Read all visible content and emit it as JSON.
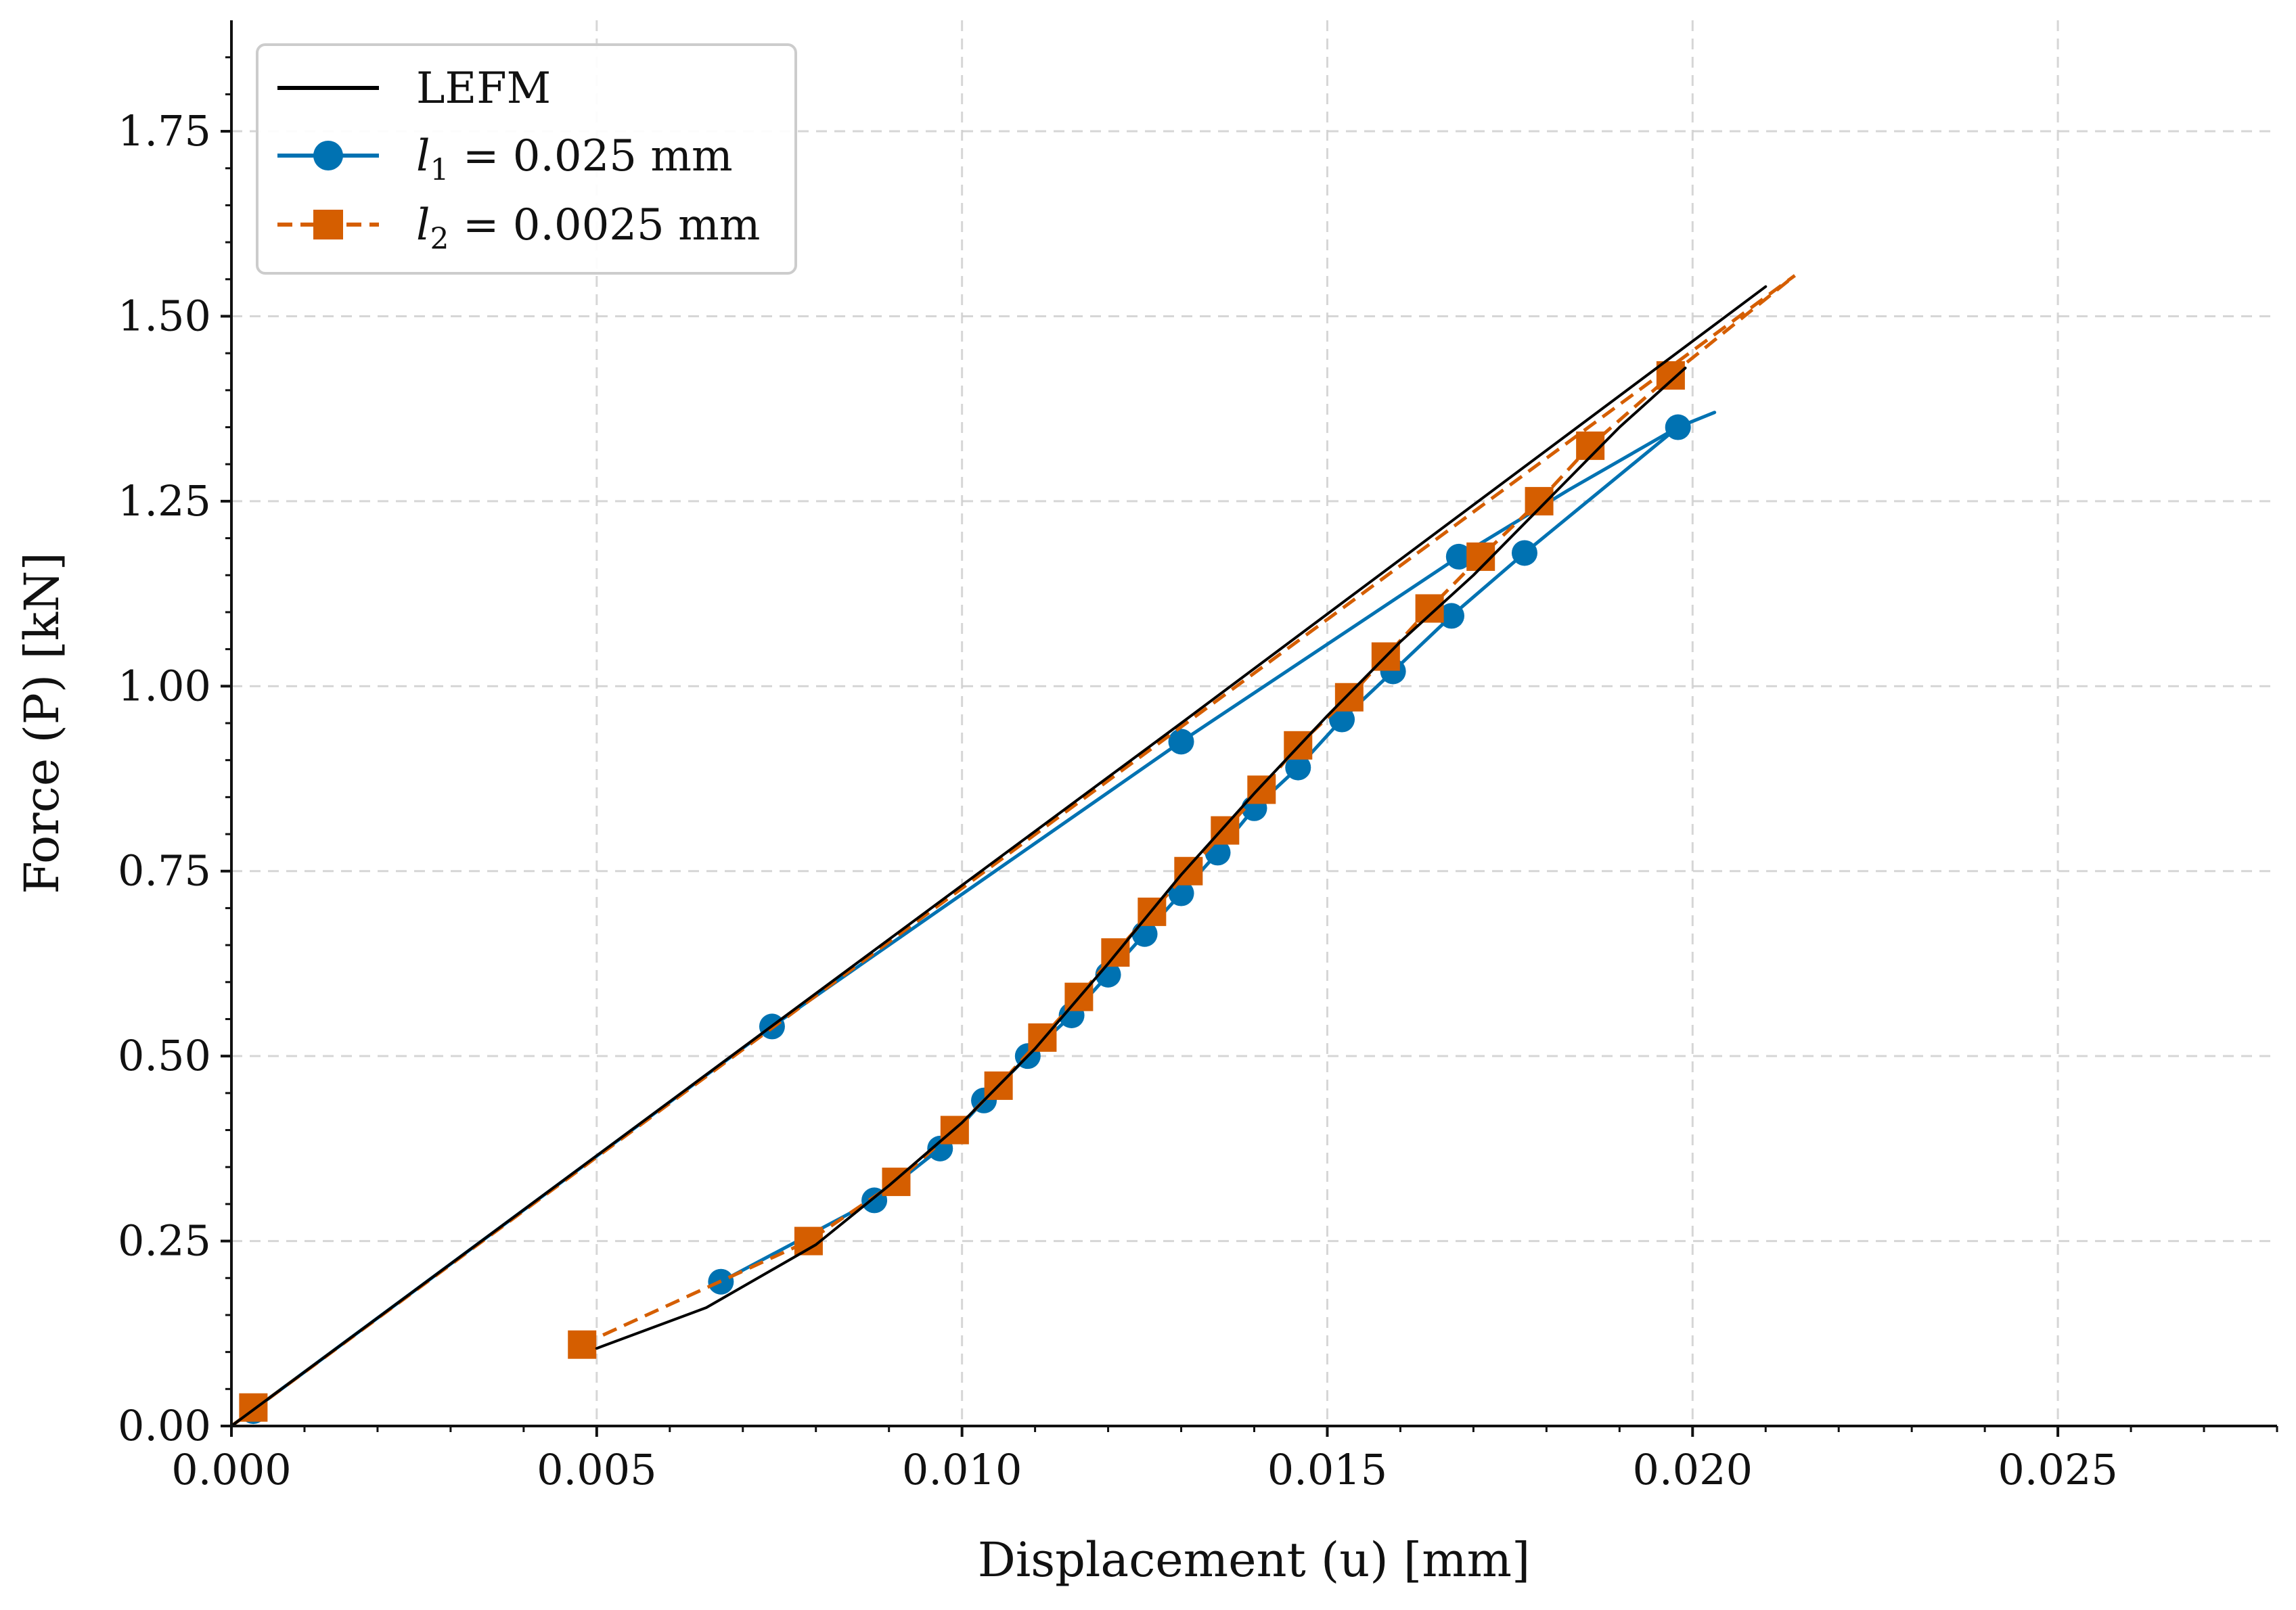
{
  "chart_data": {
    "type": "line",
    "xlabel": "Displacement (u) [mm]",
    "ylabel": "Force (P) [kN]",
    "xlim": [
      0,
      0.028
    ],
    "ylim": [
      0,
      1.9
    ],
    "x_ticks": [
      "0.000",
      "0.005",
      "0.010",
      "0.015",
      "0.020",
      "0.025"
    ],
    "y_ticks": [
      "0.00",
      "0.25",
      "0.50",
      "0.75",
      "1.00",
      "1.25",
      "1.50",
      "1.75"
    ],
    "grid": true,
    "legend_position": "top-left",
    "series": [
      {
        "name": "LEFM",
        "color": "#000000",
        "line_style": "solid",
        "marker": "none",
        "segments": [
          [
            [
              0.0,
              0.0
            ],
            [
              0.013,
              0.95
            ],
            [
              0.021,
              1.54
            ]
          ],
          [
            [
              0.005,
              0.105
            ],
            [
              0.0065,
              0.16
            ],
            [
              0.008,
              0.245
            ],
            [
              0.009,
              0.325
            ],
            [
              0.01,
              0.41
            ],
            [
              0.011,
              0.51
            ],
            [
              0.012,
              0.625
            ],
            [
              0.013,
              0.745
            ],
            [
              0.014,
              0.855
            ],
            [
              0.015,
              0.96
            ],
            [
              0.016,
              1.06
            ],
            [
              0.017,
              1.15
            ],
            [
              0.018,
              1.25
            ],
            [
              0.019,
              1.35
            ],
            [
              0.0199,
              1.43
            ]
          ]
        ]
      },
      {
        "name": "l_1 = 0.025 mm",
        "legend_main": "l",
        "legend_sub": "1",
        "legend_rest": " = 0.025 mm",
        "color": "#0072b2",
        "line_style": "solid",
        "marker": "circle",
        "segments": [
          [
            [
              0.0,
              0.0
            ],
            [
              0.0074,
              0.54
            ],
            [
              0.013,
              0.925
            ],
            [
              0.0168,
              1.175
            ],
            [
              0.0183,
              1.265
            ],
            [
              0.0198,
              1.35
            ],
            [
              0.0203,
              1.37
            ]
          ],
          [
            [
              0.0067,
              0.195
            ],
            [
              0.0088,
              0.305
            ],
            [
              0.0097,
              0.375
            ],
            [
              0.0103,
              0.44
            ],
            [
              0.0109,
              0.5
            ],
            [
              0.0115,
              0.555
            ],
            [
              0.012,
              0.61
            ],
            [
              0.0125,
              0.665
            ],
            [
              0.013,
              0.72
            ],
            [
              0.0135,
              0.775
            ],
            [
              0.014,
              0.835
            ],
            [
              0.0146,
              0.89
            ],
            [
              0.0152,
              0.955
            ],
            [
              0.0159,
              1.02
            ],
            [
              0.0167,
              1.095
            ],
            [
              0.0177,
              1.18
            ],
            [
              0.0198,
              1.35
            ]
          ]
        ],
        "markers": [
          [
            0.0003,
            0.02
          ],
          [
            0.0074,
            0.54
          ],
          [
            0.013,
            0.925
          ],
          [
            0.0168,
            1.175
          ],
          [
            0.0198,
            1.35
          ],
          [
            0.0067,
            0.195
          ],
          [
            0.0088,
            0.305
          ],
          [
            0.0097,
            0.375
          ],
          [
            0.0103,
            0.44
          ],
          [
            0.0109,
            0.5
          ],
          [
            0.0115,
            0.555
          ],
          [
            0.012,
            0.61
          ],
          [
            0.0125,
            0.665
          ],
          [
            0.013,
            0.72
          ],
          [
            0.0135,
            0.775
          ],
          [
            0.014,
            0.835
          ],
          [
            0.0146,
            0.89
          ],
          [
            0.0152,
            0.955
          ],
          [
            0.0159,
            1.02
          ],
          [
            0.0167,
            1.095
          ],
          [
            0.0177,
            1.18
          ]
        ]
      },
      {
        "name": "l_2 = 0.0025 mm",
        "legend_main": "l",
        "legend_sub": "2",
        "legend_rest": " = 0.0025 mm",
        "color": "#d55e00",
        "line_style": "dashed",
        "marker": "square",
        "segments": [
          [
            [
              0.0,
              0.0
            ],
            [
              0.013,
              0.945
            ],
            [
              0.0214,
              1.555
            ]
          ],
          [
            [
              0.0048,
              0.11
            ],
            [
              0.0079,
              0.25
            ],
            [
              0.0091,
              0.33
            ],
            [
              0.0099,
              0.4
            ],
            [
              0.0105,
              0.46
            ],
            [
              0.0111,
              0.525
            ],
            [
              0.0116,
              0.58
            ],
            [
              0.0121,
              0.64
            ],
            [
              0.0126,
              0.695
            ],
            [
              0.0131,
              0.75
            ],
            [
              0.0136,
              0.805
            ],
            [
              0.0141,
              0.86
            ],
            [
              0.0146,
              0.92
            ],
            [
              0.0153,
              0.985
            ],
            [
              0.0158,
              1.04
            ],
            [
              0.0164,
              1.105
            ],
            [
              0.0171,
              1.175
            ],
            [
              0.0179,
              1.25
            ],
            [
              0.0186,
              1.325
            ],
            [
              0.0197,
              1.42
            ],
            [
              0.0214,
              1.555
            ]
          ]
        ],
        "markers": [
          [
            0.0003,
            0.025
          ],
          [
            0.0048,
            0.11
          ],
          [
            0.0079,
            0.25
          ],
          [
            0.0091,
            0.33
          ],
          [
            0.0099,
            0.4
          ],
          [
            0.0105,
            0.46
          ],
          [
            0.0111,
            0.525
          ],
          [
            0.0116,
            0.58
          ],
          [
            0.0121,
            0.64
          ],
          [
            0.0126,
            0.695
          ],
          [
            0.0131,
            0.75
          ],
          [
            0.0136,
            0.805
          ],
          [
            0.0141,
            0.86
          ],
          [
            0.0146,
            0.92
          ],
          [
            0.0153,
            0.985
          ],
          [
            0.0158,
            1.04
          ],
          [
            0.0164,
            1.105
          ],
          [
            0.0171,
            1.175
          ],
          [
            0.0179,
            1.25
          ],
          [
            0.0186,
            1.325
          ],
          [
            0.0197,
            1.42
          ]
        ]
      }
    ]
  }
}
